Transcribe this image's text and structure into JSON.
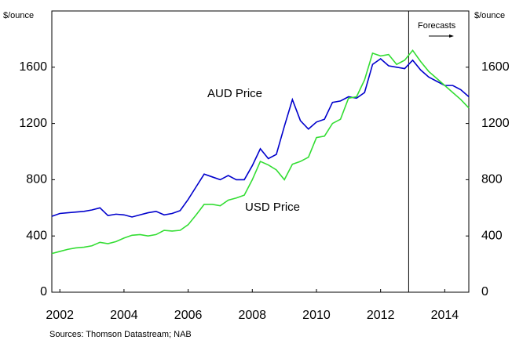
{
  "chart_data": {
    "type": "line",
    "y_unit_label": "$/ounce",
    "y2_unit_label": "$/ounce",
    "source": "Sources: Thomson Datastream; NAB",
    "annotations": [
      "AUD Price",
      "USD Price",
      "Forecasts"
    ],
    "forecast_start": 2012.875,
    "x": [
      2001.75,
      2002,
      2002.25,
      2002.5,
      2002.75,
      2003,
      2003.25,
      2003.5,
      2003.75,
      2004,
      2004.25,
      2004.5,
      2004.75,
      2005,
      2005.25,
      2005.5,
      2005.75,
      2006,
      2006.25,
      2006.5,
      2006.75,
      2007,
      2007.25,
      2007.5,
      2007.75,
      2008,
      2008.25,
      2008.5,
      2008.75,
      2009,
      2009.25,
      2009.5,
      2009.75,
      2010,
      2010.25,
      2010.5,
      2010.75,
      2011,
      2011.25,
      2011.5,
      2011.75,
      2012,
      2012.25,
      2012.5,
      2012.75,
      2013,
      2013.25,
      2013.5,
      2013.75,
      2014,
      2014.25,
      2014.5,
      2014.75
    ],
    "series": [
      {
        "name": "AUD Price",
        "color": "#0000cc",
        "values": [
          540,
          560,
          565,
          570,
          575,
          585,
          600,
          545,
          555,
          550,
          535,
          550,
          565,
          575,
          550,
          560,
          580,
          660,
          750,
          840,
          820,
          800,
          830,
          800,
          800,
          900,
          1020,
          950,
          980,
          1180,
          1370,
          1220,
          1160,
          1210,
          1230,
          1350,
          1360,
          1390,
          1380,
          1420,
          1620,
          1660,
          1610,
          1600,
          1590,
          1650,
          1580,
          1530,
          1500,
          1470,
          1470,
          1440,
          1390
        ]
      },
      {
        "name": "USD Price",
        "color": "#33dd33",
        "values": [
          275,
          290,
          305,
          315,
          320,
          330,
          355,
          345,
          360,
          385,
          405,
          410,
          400,
          410,
          440,
          435,
          440,
          480,
          550,
          625,
          625,
          615,
          655,
          670,
          690,
          800,
          930,
          905,
          870,
          800,
          910,
          930,
          960,
          1100,
          1110,
          1200,
          1230,
          1380,
          1390,
          1510,
          1700,
          1680,
          1690,
          1620,
          1650,
          1720,
          1640,
          1570,
          1520,
          1470,
          1420,
          1370,
          1310
        ]
      }
    ],
    "xlim": [
      2001.75,
      2014.75
    ],
    "xticks": [
      2002,
      2004,
      2006,
      2008,
      2010,
      2012,
      2014
    ],
    "ylim": [
      0,
      2000
    ],
    "yticks": [
      0,
      400,
      800,
      1200,
      1600
    ],
    "y2lim": [
      0,
      2000
    ],
    "y2ticks": [
      0,
      400,
      800,
      1200,
      1600
    ],
    "grid": false
  }
}
